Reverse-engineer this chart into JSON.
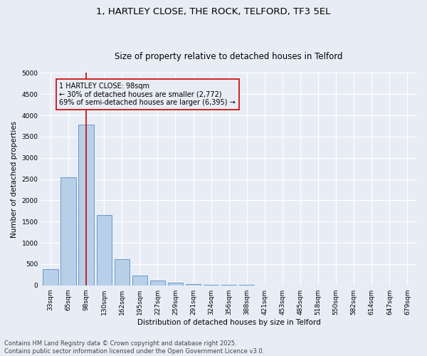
{
  "title1": "1, HARTLEY CLOSE, THE ROCK, TELFORD, TF3 5EL",
  "title2": "Size of property relative to detached houses in Telford",
  "xlabel": "Distribution of detached houses by size in Telford",
  "ylabel": "Number of detached properties",
  "categories": [
    "33sqm",
    "65sqm",
    "98sqm",
    "130sqm",
    "162sqm",
    "195sqm",
    "227sqm",
    "259sqm",
    "291sqm",
    "324sqm",
    "356sqm",
    "388sqm",
    "421sqm",
    "453sqm",
    "485sqm",
    "518sqm",
    "550sqm",
    "582sqm",
    "614sqm",
    "647sqm",
    "679sqm"
  ],
  "values": [
    380,
    2540,
    3780,
    1650,
    620,
    230,
    105,
    60,
    35,
    20,
    10,
    5,
    3,
    2,
    1,
    1,
    1,
    0,
    0,
    0,
    0
  ],
  "bar_color": "#b8cfe8",
  "bar_edgecolor": "#6699cc",
  "vline_x": 2,
  "vline_color": "#cc0000",
  "annotation_text": "1 HARTLEY CLOSE: 98sqm\n← 30% of detached houses are smaller (2,772)\n69% of semi-detached houses are larger (6,395) →",
  "annotation_box_color": "#cc0000",
  "ylim": [
    0,
    5000
  ],
  "yticks": [
    0,
    500,
    1000,
    1500,
    2000,
    2500,
    3000,
    3500,
    4000,
    4500,
    5000
  ],
  "footer1": "Contains HM Land Registry data © Crown copyright and database right 2025.",
  "footer2": "Contains public sector information licensed under the Open Government Licence v3.0.",
  "bg_color": "#e8edf5",
  "grid_color": "#ffffff",
  "title1_fontsize": 9.5,
  "title2_fontsize": 8.5,
  "tick_fontsize": 6.5,
  "ylabel_fontsize": 7.5,
  "xlabel_fontsize": 7.5,
  "footer_fontsize": 6,
  "annotation_fontsize": 7
}
